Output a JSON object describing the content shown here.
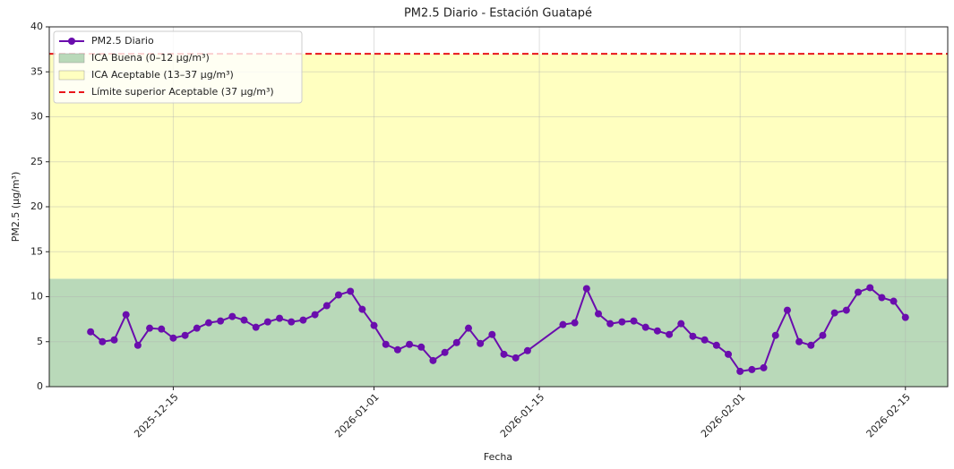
{
  "chart_data": {
    "type": "line",
    "title": "PM2.5 Diario - Estación Guatapé",
    "xlabel": "Fecha",
    "ylabel": "PM2.5 (µg/m³)",
    "x": [
      "2025-12-08",
      "2025-12-09",
      "2025-12-10",
      "2025-12-11",
      "2025-12-12",
      "2025-12-13",
      "2025-12-14",
      "2025-12-15",
      "2025-12-16",
      "2025-12-17",
      "2025-12-18",
      "2025-12-19",
      "2025-12-20",
      "2025-12-21",
      "2025-12-22",
      "2025-12-23",
      "2025-12-24",
      "2025-12-25",
      "2025-12-26",
      "2025-12-27",
      "2025-12-28",
      "2025-12-29",
      "2025-12-30",
      "2025-12-31",
      "2026-01-01",
      "2026-01-02",
      "2026-01-03",
      "2026-01-04",
      "2026-01-05",
      "2026-01-06",
      "2026-01-07",
      "2026-01-08",
      "2026-01-09",
      "2026-01-10",
      "2026-01-11",
      "2026-01-12",
      "2026-01-13",
      "2026-01-14",
      "2026-01-17",
      "2026-01-18",
      "2026-01-19",
      "2026-01-20",
      "2026-01-21",
      "2026-01-22",
      "2026-01-23",
      "2026-01-24",
      "2026-01-25",
      "2026-01-26",
      "2026-01-27",
      "2026-01-28",
      "2026-01-29",
      "2026-01-30",
      "2026-01-31",
      "2026-02-01",
      "2026-02-02",
      "2026-02-03",
      "2026-02-04",
      "2026-02-05",
      "2026-02-06",
      "2026-02-07",
      "2026-02-08",
      "2026-02-09",
      "2026-02-10",
      "2026-02-11",
      "2026-02-12",
      "2026-02-13",
      "2026-02-14",
      "2026-02-15"
    ],
    "series": [
      {
        "name": "PM2.5 Diario",
        "color": "#6a0dad",
        "values": [
          6.1,
          5.0,
          5.2,
          8.0,
          4.6,
          6.5,
          6.4,
          5.4,
          5.7,
          6.5,
          7.1,
          7.3,
          7.8,
          7.4,
          6.6,
          7.2,
          7.6,
          7.2,
          7.4,
          8.0,
          9.0,
          10.2,
          10.6,
          8.6,
          6.8,
          4.7,
          4.1,
          4.7,
          4.4,
          2.9,
          3.8,
          4.9,
          6.5,
          4.8,
          5.8,
          3.6,
          3.2,
          4.0,
          6.9,
          7.1,
          10.9,
          8.1,
          7.0,
          7.2,
          7.3,
          6.6,
          6.2,
          5.8,
          7.0,
          5.6,
          5.2,
          4.6,
          3.6,
          1.7,
          1.9,
          2.1,
          5.7,
          8.5,
          5.0,
          4.6,
          5.7,
          8.2,
          8.5,
          10.5,
          11.0,
          9.9,
          9.5,
          7.7
        ]
      }
    ],
    "bands": [
      {
        "name": "ICA Buena (0–12 µg/m³)",
        "color": "#b9d9b9",
        "range": [
          0,
          12
        ]
      },
      {
        "name": "ICA Aceptable (13–37 µg/m³)",
        "color": "#ffffc0",
        "range": [
          12,
          37
        ]
      }
    ],
    "hline": {
      "name": "Límite superior Aceptable (37 µg/m³)",
      "color": "#e8161b",
      "value": 37
    },
    "xlim": [
      "2025-12-04T12:00",
      "2026-02-18T14:00"
    ],
    "xticks": [
      "2025-12-15",
      "2026-01-01",
      "2026-01-15",
      "2026-02-01",
      "2026-02-15"
    ],
    "ylim": [
      0,
      40
    ],
    "yticks": [
      0,
      5,
      10,
      15,
      20,
      25,
      30,
      35,
      40
    ],
    "grid": true,
    "legend": "upper left"
  }
}
